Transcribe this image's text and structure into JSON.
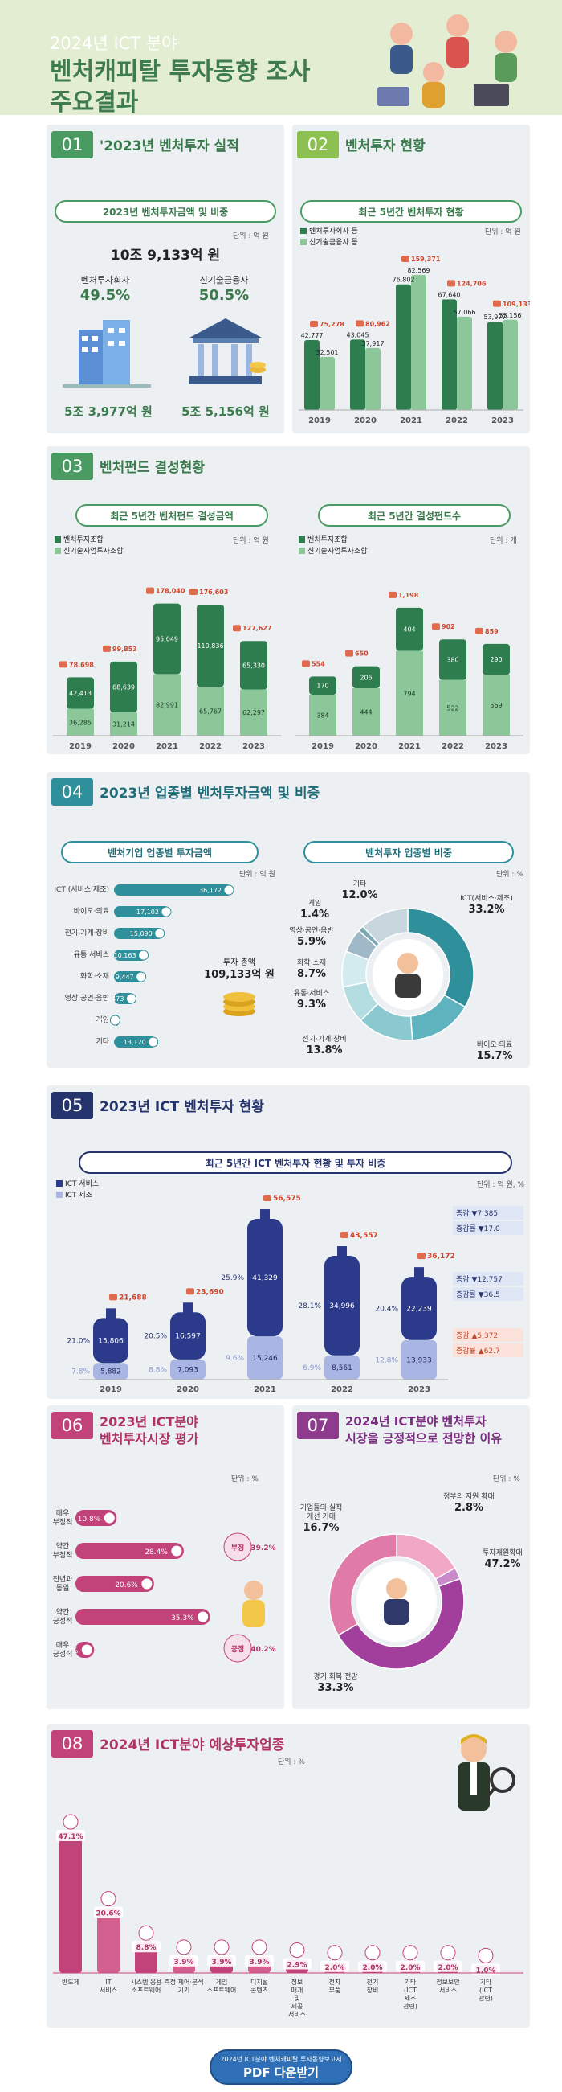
{
  "header": {
    "title_small": "2024년 ICT 분야",
    "title_line1": "벤처캐피탈 투자동향 조사",
    "title_line2": "주요결과"
  },
  "s01": {
    "num": "01",
    "title": "'2023년 벤처투자 실적",
    "sub": "2023년 벤처투자금액 및 비중",
    "unit": "단위 : 억 원",
    "total": "10조 9,133억 원",
    "vc": {
      "name": "벤처투자회사",
      "share": "49.5%",
      "amount": "5조 3,977억 원"
    },
    "fin": {
      "name": "신기술금융사",
      "share": "50.5%",
      "amount": "5조 5,156억 원"
    }
  },
  "s02": {
    "num": "02",
    "title": "벤처투자 현황",
    "sub": "최근 5년간 벤처투자 현황",
    "unit": "단위 : 억 원",
    "legend": [
      "벤처투자회사 등",
      "신기술금융사 등"
    ]
  },
  "s03": {
    "num": "03",
    "title": "벤처펀드 결성현황",
    "sub_left": "최근 5년간 벤처펀드 결성금액",
    "sub_right": "최근 5년간 결성펀드수",
    "unit_left": "단위 : 억 원",
    "unit_right": "단위 : 개",
    "legend": [
      "벤처투자조합",
      "신기술사업투자조합"
    ]
  },
  "s04": {
    "num": "04",
    "title": "2023년 업종별 벤처투자금액 및 비중",
    "sub_left": "벤처기업 업종별 투자금액",
    "sub_right": "벤처투자 업종별 비중",
    "unit_left": "단위 : 억 원",
    "unit_right": "단위 : %",
    "total_label": "투자 총액",
    "total_value": "109,133억 원"
  },
  "s05": {
    "num": "05",
    "title": "2023년 ICT 벤처투자 현황",
    "sub": "최근 5년간 ICT 벤처투자 현황 및 투자 비중",
    "unit": "단위 : 억 원, %",
    "legend": [
      "ICT 서비스",
      "ICT 제조"
    ],
    "changes": [
      {
        "a": "증감",
        "b": "▼7,385"
      },
      {
        "a": "증감률",
        "b": "▼17.0"
      },
      {
        "a": "증감",
        "b": "▼12,757"
      },
      {
        "a": "증감률",
        "b": "▼36.5"
      },
      {
        "a": "증감",
        "b": "▲5,372"
      },
      {
        "a": "증감률",
        "b": "▲62.7"
      }
    ]
  },
  "s06": {
    "num": "06",
    "title1": "2023년 ICT분야",
    "title2": "벤처투자시장 평가",
    "unit": "단위 : %",
    "neg_label": "부정",
    "neg_value": "39.2%",
    "pos_label": "긍정",
    "pos_value": "40.2%"
  },
  "s07": {
    "num": "07",
    "title1": "2024년 ICT분야 벤처투자",
    "title2": "시장을 긍정적으로 전망한 이유",
    "unit": "단위 : %"
  },
  "s08": {
    "num": "08",
    "title": "2024년 ICT분야 예상투자업종",
    "unit": "단위 : %"
  },
  "pdf": {
    "small": "2024년 ICT분야 벤처캐피탈 투자동향보고서",
    "big": "PDF 다운받기"
  },
  "colors": {
    "green": "#4a9b62",
    "teal": "#2f8f9b",
    "navy": "#26346d",
    "pink": "#c2437a",
    "purple": "#8e3a8f",
    "orange": "#e06a4c"
  },
  "chart_data": [
    {
      "id": "vc_invest",
      "type": "bar",
      "categories": [
        "2019",
        "2020",
        "2021",
        "2022",
        "2023"
      ],
      "series": [
        {
          "name": "벤처투자회사 등",
          "values": [
            42777,
            43045,
            76802,
            67640,
            53977
          ]
        },
        {
          "name": "신기술금융사 등",
          "values": [
            32501,
            37917,
            82569,
            57066,
            55156
          ]
        }
      ],
      "totals": [
        75278,
        80962,
        159371,
        124706,
        109133
      ]
    },
    {
      "id": "fund_amount",
      "type": "bar",
      "categories": [
        "2019",
        "2020",
        "2021",
        "2022",
        "2023"
      ],
      "series": [
        {
          "name": "벤처투자조합",
          "values": [
            42413,
            68639,
            95049,
            110836,
            65330
          ]
        },
        {
          "name": "신기술사업투자조합",
          "values": [
            36285,
            31214,
            82991,
            65767,
            62297
          ]
        }
      ],
      "totals": [
        78698,
        99853,
        178040,
        176603,
        127627
      ]
    },
    {
      "id": "fund_count",
      "type": "bar",
      "categories": [
        "2019",
        "2020",
        "2021",
        "2022",
        "2023"
      ],
      "series": [
        {
          "name": "벤처투자조합",
          "values": [
            170,
            206,
            404,
            380,
            290
          ]
        },
        {
          "name": "신기술사업투자조합",
          "values": [
            384,
            444,
            794,
            522,
            569
          ]
        }
      ],
      "totals": [
        554,
        650,
        1198,
        902,
        859
      ]
    },
    {
      "id": "industry_amount",
      "type": "bar",
      "categories": [
        "ICT (서비스·제조)",
        "바이오·의료",
        "전기·기계·장비",
        "유통·서비스",
        "화학·소재",
        "영상·공연·음반",
        "게임",
        "기타"
      ],
      "values": [
        36172,
        17102,
        15090,
        10163,
        9447,
        6473,
        1567,
        13120
      ]
    },
    {
      "id": "industry_share",
      "type": "pie",
      "labels": [
        "ICT(서비스·제조)",
        "바이오·의료",
        "전기·기계·장비",
        "유통·서비스",
        "화학·소재",
        "영상·공연·음반",
        "게임",
        "기타"
      ],
      "values": [
        33.2,
        15.7,
        13.8,
        9.3,
        8.7,
        5.9,
        1.4,
        12.0
      ]
    },
    {
      "id": "ict_invest",
      "type": "bar",
      "categories": [
        "2019",
        "2020",
        "2021",
        "2022",
        "2023"
      ],
      "series": [
        {
          "name": "ICT 서비스",
          "values": [
            15806,
            16597,
            41329,
            34996,
            22239
          ]
        },
        {
          "name": "ICT 제조",
          "values": [
            5882,
            7093,
            15246,
            8561,
            13933
          ]
        }
      ],
      "totals": [
        21688,
        23690,
        56575,
        43557,
        36172
      ],
      "service_share": [
        "21.0%",
        "20.5%",
        "25.9%",
        "28.1%",
        "20.4%"
      ],
      "manuf_share": [
        "7.8%",
        "8.8%",
        "9.6%",
        "6.9%",
        "12.8%"
      ]
    },
    {
      "id": "market_eval",
      "type": "bar",
      "categories": [
        "매우 부정적",
        "약간 부정적",
        "전년과 동일",
        "약간 긍정적",
        "매우 긍정적"
      ],
      "values": [
        10.8,
        28.4,
        20.6,
        35.3,
        4.9
      ]
    },
    {
      "id": "reasons",
      "type": "pie",
      "labels": [
        "기업들의 실적 개선 기대",
        "정부의 지원 확대",
        "투자재원확대",
        "경기 회복 전망"
      ],
      "values": [
        16.7,
        2.8,
        47.2,
        33.3
      ]
    },
    {
      "id": "expected_industry",
      "type": "bar",
      "categories": [
        "반도체",
        "IT 서비스",
        "시스템·응용 소프트웨어",
        "측정·제어·분석 기기",
        "게임 소프트웨어",
        "디지털 콘텐츠",
        "정보 매개 및 제공 서비스",
        "전자 부품",
        "전기 장비",
        "기타 (ICT 제조 관련)",
        "정보보안 서비스",
        "기타 (ICT 관련)"
      ],
      "values": [
        47.1,
        20.6,
        8.8,
        3.9,
        3.9,
        3.9,
        2.9,
        2.0,
        2.0,
        2.0,
        2.0,
        1.0
      ]
    }
  ]
}
